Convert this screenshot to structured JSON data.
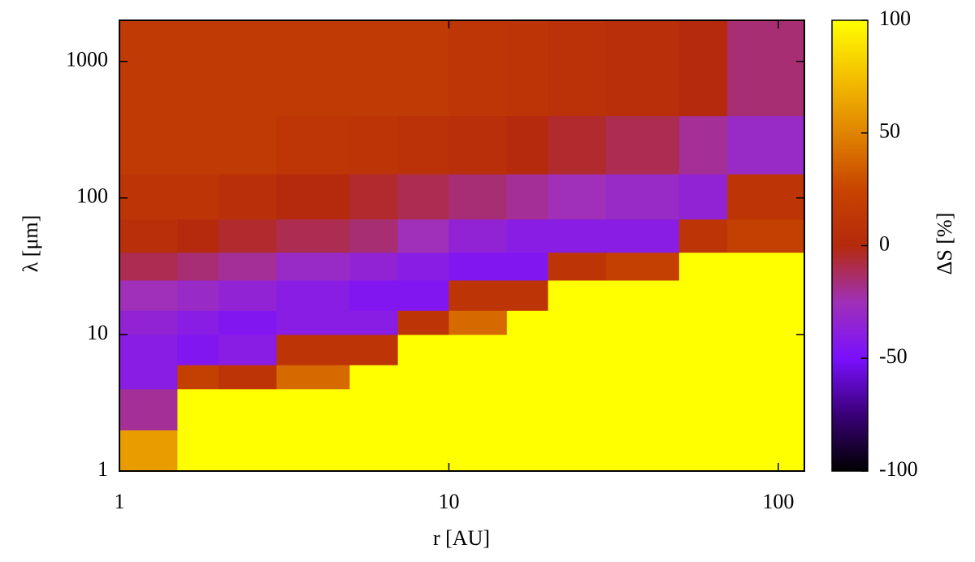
{
  "chart_data": {
    "type": "heatmap",
    "xlabel": "r [AU]",
    "ylabel": "λ [μm]",
    "colorbar_label": "ΔS [%]",
    "xscale": "log",
    "yscale": "log",
    "xlim": [
      1,
      120
    ],
    "ylim": [
      1,
      2000
    ],
    "zlim": [
      -100,
      100
    ],
    "xticks": [
      1,
      10,
      100
    ],
    "yticks": [
      1,
      10,
      100,
      1000
    ],
    "zticks": [
      -100,
      -50,
      0,
      50,
      100
    ],
    "colormap": [
      "#000000",
      "#3a0078",
      "#7a10ff",
      "#a030b8",
      "#b52a0c",
      "#c84400",
      "#e08400",
      "#f4c000",
      "#ffff00"
    ],
    "xbins": [
      1,
      1.5,
      2,
      3,
      5,
      7,
      10,
      15,
      20,
      30,
      50,
      70,
      120
    ],
    "ybins": [
      1,
      2,
      4,
      6,
      10,
      15,
      25,
      40,
      70,
      150,
      400,
      2000
    ],
    "z": [
      [
        60,
        100,
        100,
        100,
        100,
        100,
        100,
        100,
        100,
        100,
        100,
        100
      ],
      [
        -20,
        100,
        100,
        100,
        100,
        100,
        100,
        100,
        100,
        100,
        100,
        100
      ],
      [
        -40,
        20,
        10,
        40,
        100,
        100,
        100,
        100,
        100,
        100,
        100,
        100
      ],
      [
        -40,
        -45,
        -40,
        10,
        10,
        100,
        100,
        100,
        100,
        100,
        100,
        100
      ],
      [
        -35,
        -40,
        -45,
        -40,
        -40,
        10,
        40,
        100,
        100,
        100,
        100,
        100
      ],
      [
        -25,
        -30,
        -35,
        -40,
        -45,
        -45,
        10,
        10,
        100,
        100,
        100,
        100
      ],
      [
        -10,
        -15,
        -20,
        -30,
        -35,
        -40,
        -45,
        -45,
        10,
        20,
        100,
        100
      ],
      [
        5,
        0,
        -5,
        -10,
        -15,
        -25,
        -35,
        -40,
        -40,
        -40,
        10,
        20
      ],
      [
        10,
        10,
        5,
        0,
        -5,
        -10,
        -15,
        -20,
        -25,
        -30,
        -35,
        10
      ],
      [
        15,
        15,
        15,
        12,
        10,
        8,
        5,
        0,
        -5,
        -10,
        -20,
        -30
      ],
      [
        15,
        15,
        15,
        15,
        15,
        15,
        12,
        10,
        8,
        5,
        0,
        -15
      ]
    ]
  }
}
